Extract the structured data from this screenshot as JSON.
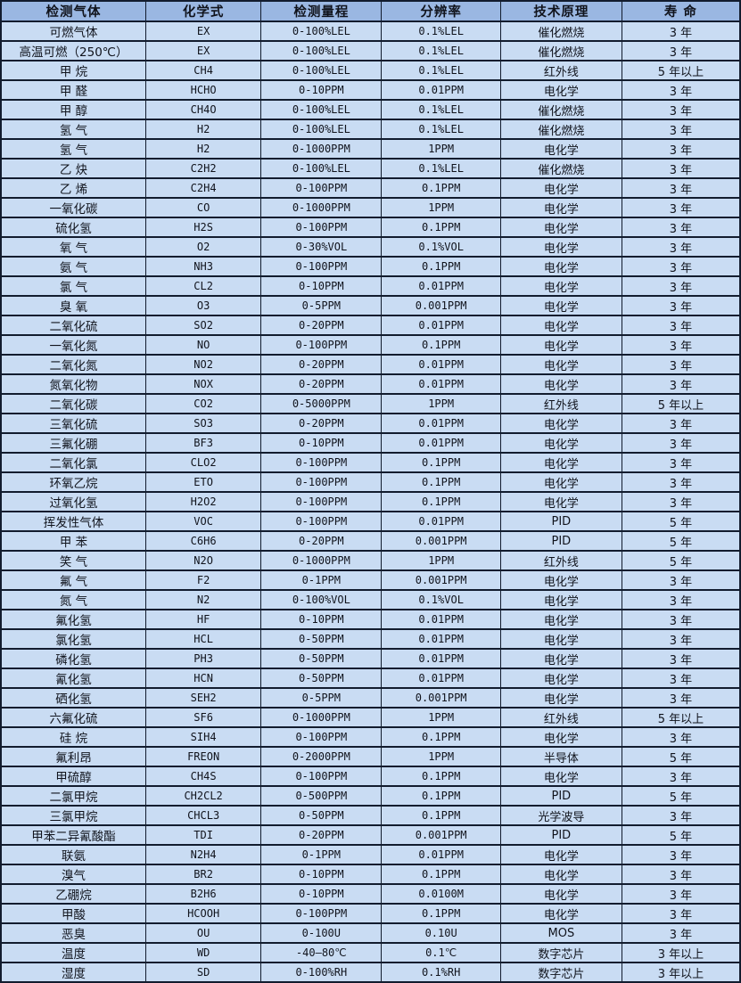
{
  "table": {
    "columns": [
      "检测气体",
      "化学式",
      "检测量程",
      "分辨率",
      "技术原理",
      "寿 命"
    ],
    "rows": [
      [
        "可燃气体",
        "EX",
        "0-100%LEL",
        "0.1%LEL",
        "催化燃烧",
        "3 年"
      ],
      [
        "高温可燃（250℃）",
        "EX",
        "0-100%LEL",
        "0.1%LEL",
        "催化燃烧",
        "3 年"
      ],
      [
        "甲 烷",
        "CH4",
        "0-100%LEL",
        "0.1%LEL",
        "红外线",
        "5 年以上"
      ],
      [
        "甲 醛",
        "HCHO",
        "0-10PPM",
        "0.01PPM",
        "电化学",
        "3 年"
      ],
      [
        "甲 醇",
        "CH4O",
        "0-100%LEL",
        "0.1%LEL",
        "催化燃烧",
        "3 年"
      ],
      [
        "氢 气",
        "H2",
        "0-100%LEL",
        "0.1%LEL",
        "催化燃烧",
        "3 年"
      ],
      [
        "氢 气",
        "H2",
        "0-1000PPM",
        "1PPM",
        "电化学",
        "3 年"
      ],
      [
        "乙 炔",
        "C2H2",
        "0-100%LEL",
        "0.1%LEL",
        "催化燃烧",
        "3 年"
      ],
      [
        "乙 烯",
        "C2H4",
        "0-100PPM",
        "0.1PPM",
        "电化学",
        "3 年"
      ],
      [
        "一氧化碳",
        "CO",
        "0-1000PPM",
        "1PPM",
        "电化学",
        "3 年"
      ],
      [
        "硫化氢",
        "H2S",
        "0-100PPM",
        "0.1PPM",
        "电化学",
        "3 年"
      ],
      [
        "氧 气",
        "O2",
        "0-30%VOL",
        "0.1%VOL",
        "电化学",
        "3 年"
      ],
      [
        "氨 气",
        "NH3",
        "0-100PPM",
        "0.1PPM",
        "电化学",
        "3 年"
      ],
      [
        "氯 气",
        "CL2",
        "0-10PPM",
        "0.01PPM",
        "电化学",
        "3 年"
      ],
      [
        "臭 氧",
        "O3",
        "0-5PPM",
        "0.001PPM",
        "电化学",
        "3 年"
      ],
      [
        "二氧化硫",
        "SO2",
        "0-20PPM",
        "0.01PPM",
        "电化学",
        "3 年"
      ],
      [
        "一氧化氮",
        "NO",
        "0-100PPM",
        "0.1PPM",
        "电化学",
        "3 年"
      ],
      [
        "二氧化氮",
        "NO2",
        "0-20PPM",
        "0.01PPM",
        "电化学",
        "3 年"
      ],
      [
        "氮氧化物",
        "NOX",
        "0-20PPM",
        "0.01PPM",
        "电化学",
        "3 年"
      ],
      [
        "二氧化碳",
        "CO2",
        "0-5000PPM",
        "1PPM",
        "红外线",
        "5 年以上"
      ],
      [
        "三氧化硫",
        "SO3",
        "0-20PPM",
        "0.01PPM",
        "电化学",
        "3 年"
      ],
      [
        "三氟化硼",
        "BF3",
        "0-10PPM",
        "0.01PPM",
        "电化学",
        "3 年"
      ],
      [
        "二氧化氯",
        "CLO2",
        "0-100PPM",
        "0.1PPM",
        "电化学",
        "3 年"
      ],
      [
        "环氧乙烷",
        "ETO",
        "0-100PPM",
        "0.1PPM",
        "电化学",
        "3 年"
      ],
      [
        "过氧化氢",
        "H2O2",
        "0-100PPM",
        "0.1PPM",
        "电化学",
        "3 年"
      ],
      [
        "挥发性气体",
        "VOC",
        "0-100PPM",
        "0.01PPM",
        "PID",
        "5 年"
      ],
      [
        "甲 苯",
        "C6H6",
        "0-20PPM",
        "0.001PPM",
        "PID",
        "5 年"
      ],
      [
        "笑 气",
        "N2O",
        "0-1000PPM",
        "1PPM",
        "红外线",
        "5 年"
      ],
      [
        "氟 气",
        "F2",
        "0-1PPM",
        "0.001PPM",
        "电化学",
        "3 年"
      ],
      [
        "氮 气",
        "N2",
        "0-100%VOL",
        "0.1%VOL",
        "电化学",
        "3 年"
      ],
      [
        "氟化氢",
        "HF",
        "0-10PPM",
        "0.01PPM",
        "电化学",
        "3 年"
      ],
      [
        "氯化氢",
        "HCL",
        "0-50PPM",
        "0.01PPM",
        "电化学",
        "3 年"
      ],
      [
        "磷化氢",
        "PH3",
        "0-50PPM",
        "0.01PPM",
        "电化学",
        "3 年"
      ],
      [
        "氰化氢",
        "HCN",
        "0-50PPM",
        "0.01PPM",
        "电化学",
        "3 年"
      ],
      [
        "硒化氢",
        "SEH2",
        "0-5PPM",
        "0.001PPM",
        "电化学",
        "3 年"
      ],
      [
        "六氟化硫",
        "SF6",
        "0-1000PPM",
        "1PPM",
        "红外线",
        "5 年以上"
      ],
      [
        "硅 烷",
        "SIH4",
        "0-100PPM",
        "0.1PPM",
        "电化学",
        "3 年"
      ],
      [
        "氟利昂",
        "FREON",
        "0-2000PPM",
        "1PPM",
        "半导体",
        "5 年"
      ],
      [
        "甲硫醇",
        "CH4S",
        "0-100PPM",
        "0.1PPM",
        "电化学",
        "3 年"
      ],
      [
        "二氯甲烷",
        "CH2CL2",
        "0-500PPM",
        "0.1PPM",
        "PID",
        "5 年"
      ],
      [
        "三氯甲烷",
        "CHCL3",
        "0-50PPM",
        "0.1PPM",
        "光学波导",
        "3 年"
      ],
      [
        "甲苯二异氰酸酯",
        "TDI",
        "0-20PPM",
        "0.001PPM",
        "PID",
        "5 年"
      ],
      [
        "联氨",
        "N2H4",
        "0-1PPM",
        "0.01PPM",
        "电化学",
        "3 年"
      ],
      [
        "溴气",
        "BR2",
        "0-10PPM",
        "0.1PPM",
        "电化学",
        "3 年"
      ],
      [
        "乙硼烷",
        "B2H6",
        "0-10PPM",
        "0.0100M",
        "电化学",
        "3 年"
      ],
      [
        "甲酸",
        "HCOOH",
        "0-100PPM",
        "0.1PPM",
        "电化学",
        "3 年"
      ],
      [
        "恶臭",
        "OU",
        "0-100U",
        "0.10U",
        "MOS",
        "3 年"
      ],
      [
        "温度",
        "WD",
        "-40—80℃",
        "0.1℃",
        "数字芯片",
        "3 年以上"
      ],
      [
        "湿度",
        "SD",
        "0-100%RH",
        "0.1%RH",
        "数字芯片",
        "3 年以上"
      ]
    ],
    "colors": {
      "header_bg": "#9ab7e2",
      "row_bg": "#c9dcf3",
      "border": "#121c2e",
      "text": "#10131c"
    }
  }
}
